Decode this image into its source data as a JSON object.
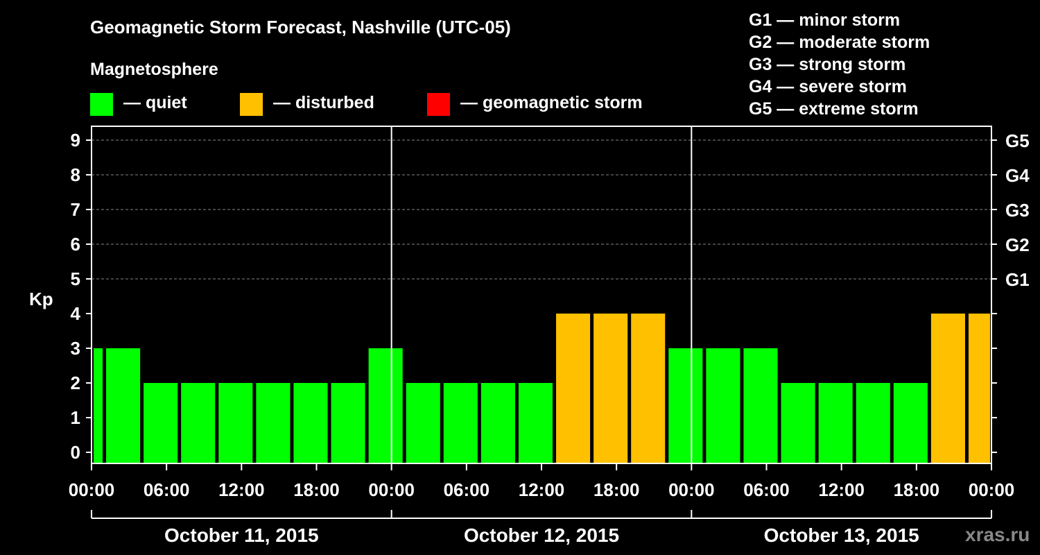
{
  "title": "Geomagnetic Storm Forecast, Nashville (UTC-05)",
  "legend": {
    "heading": "Magnetosphere",
    "items": [
      {
        "label": "— quiet",
        "color": "#00ff00"
      },
      {
        "label": "— disturbed",
        "color": "#ffc000"
      },
      {
        "label": "— geomagnetic storm",
        "color": "#ff0000"
      }
    ]
  },
  "g_scale": [
    "G1 — minor storm",
    "G2 — moderate storm",
    "G3 — strong storm",
    "G4 — severe storm",
    "G5 — extreme storm"
  ],
  "watermark": "xras.ru",
  "chart_data": {
    "type": "bar",
    "title": "Geomagnetic Storm Forecast, Nashville (UTC-05)",
    "ylabel": "Kp",
    "ylim": [
      0,
      9
    ],
    "yticks": [
      "0",
      "1",
      "2",
      "3",
      "4",
      "5",
      "6",
      "7",
      "8",
      "9"
    ],
    "right_axis_labels": [
      {
        "kp": 5,
        "label": "G1"
      },
      {
        "kp": 6,
        "label": "G2"
      },
      {
        "kp": 7,
        "label": "G3"
      },
      {
        "kp": 8,
        "label": "G4"
      },
      {
        "kp": 9,
        "label": "G5"
      }
    ],
    "x_hours_range": [
      0,
      72
    ],
    "xticks": [
      "00:00",
      "06:00",
      "12:00",
      "18:00",
      "00:00",
      "06:00",
      "12:00",
      "18:00",
      "00:00",
      "06:00",
      "12:00",
      "18:00",
      "00:00"
    ],
    "days": [
      "October 11, 2015",
      "October 12, 2015",
      "October 13, 2015"
    ],
    "bars": [
      {
        "start": 0,
        "end": 1,
        "kp": 3,
        "status": "quiet"
      },
      {
        "start": 1,
        "end": 4,
        "kp": 3,
        "status": "quiet"
      },
      {
        "start": 4,
        "end": 7,
        "kp": 2,
        "status": "quiet"
      },
      {
        "start": 7,
        "end": 10,
        "kp": 2,
        "status": "quiet"
      },
      {
        "start": 10,
        "end": 13,
        "kp": 2,
        "status": "quiet"
      },
      {
        "start": 13,
        "end": 16,
        "kp": 2,
        "status": "quiet"
      },
      {
        "start": 16,
        "end": 19,
        "kp": 2,
        "status": "quiet"
      },
      {
        "start": 19,
        "end": 22,
        "kp": 2,
        "status": "quiet"
      },
      {
        "start": 22,
        "end": 25,
        "kp": 3,
        "status": "quiet"
      },
      {
        "start": 25,
        "end": 28,
        "kp": 2,
        "status": "quiet"
      },
      {
        "start": 28,
        "end": 31,
        "kp": 2,
        "status": "quiet"
      },
      {
        "start": 31,
        "end": 34,
        "kp": 2,
        "status": "quiet"
      },
      {
        "start": 34,
        "end": 37,
        "kp": 2,
        "status": "quiet"
      },
      {
        "start": 37,
        "end": 40,
        "kp": 4,
        "status": "disturbed"
      },
      {
        "start": 40,
        "end": 43,
        "kp": 4,
        "status": "disturbed"
      },
      {
        "start": 43,
        "end": 46,
        "kp": 4,
        "status": "disturbed"
      },
      {
        "start": 46,
        "end": 49,
        "kp": 3,
        "status": "quiet"
      },
      {
        "start": 49,
        "end": 52,
        "kp": 3,
        "status": "quiet"
      },
      {
        "start": 52,
        "end": 55,
        "kp": 3,
        "status": "quiet"
      },
      {
        "start": 55,
        "end": 58,
        "kp": 2,
        "status": "quiet"
      },
      {
        "start": 58,
        "end": 61,
        "kp": 2,
        "status": "quiet"
      },
      {
        "start": 61,
        "end": 64,
        "kp": 2,
        "status": "quiet"
      },
      {
        "start": 64,
        "end": 67,
        "kp": 2,
        "status": "quiet"
      },
      {
        "start": 67,
        "end": 70,
        "kp": 4,
        "status": "disturbed"
      },
      {
        "start": 70,
        "end": 72,
        "kp": 4,
        "status": "disturbed"
      }
    ],
    "colors": {
      "quiet": "#00ff00",
      "disturbed": "#ffc000",
      "storm": "#ff0000"
    }
  }
}
